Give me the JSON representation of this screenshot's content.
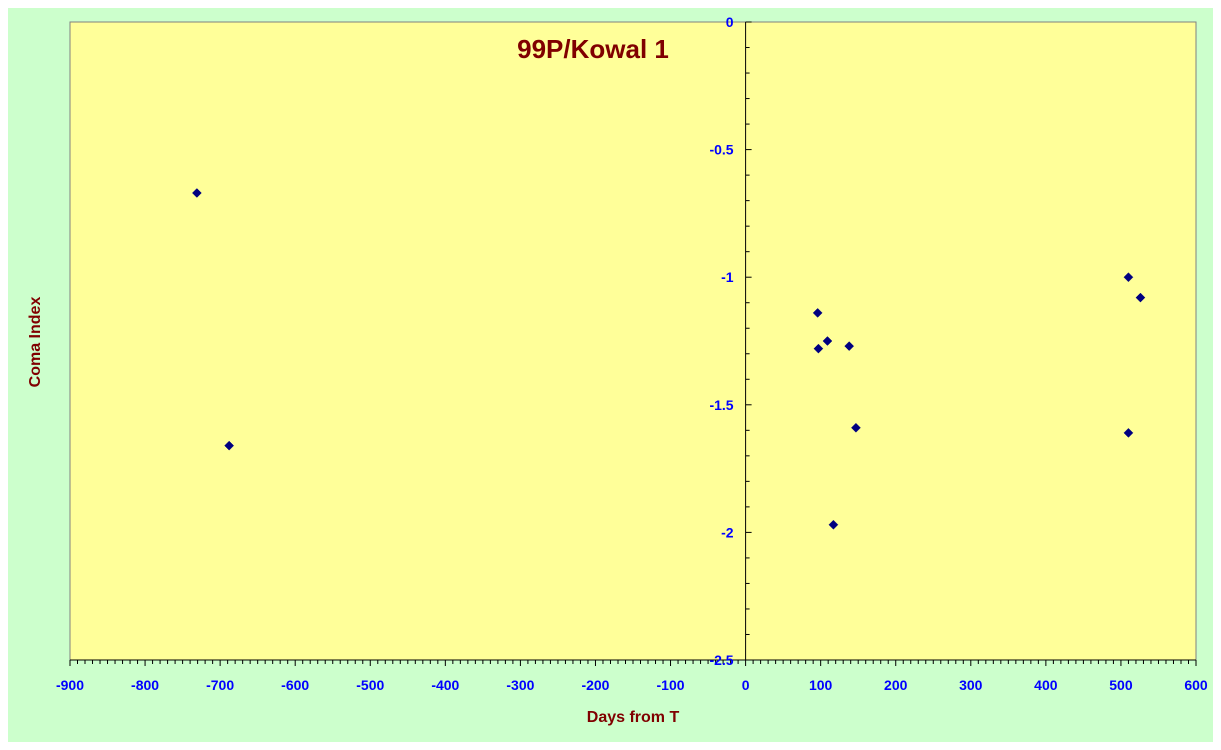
{
  "chart_data": {
    "type": "scatter",
    "title": "99P/Kowal 1",
    "xlabel": "Days from T",
    "ylabel": "Coma Index",
    "xlim": [
      -900,
      600
    ],
    "ylim": [
      -2.5,
      0
    ],
    "x_ticks": [
      -900,
      -800,
      -700,
      -600,
      -500,
      -400,
      -300,
      -200,
      -100,
      0,
      100,
      200,
      300,
      400,
      500,
      600
    ],
    "y_ticks": [
      0,
      -0.5,
      -1,
      -1.5,
      -2,
      -2.5
    ],
    "grid": false,
    "legend": "none",
    "points": [
      {
        "x": -731,
        "y": -0.67
      },
      {
        "x": -688,
        "y": -1.66
      },
      {
        "x": 96,
        "y": -1.14
      },
      {
        "x": 97,
        "y": -1.28
      },
      {
        "x": 109,
        "y": -1.25
      },
      {
        "x": 117,
        "y": -1.97
      },
      {
        "x": 138,
        "y": -1.27
      },
      {
        "x": 147,
        "y": -1.59
      },
      {
        "x": 510,
        "y": -1.0
      },
      {
        "x": 510,
        "y": -1.61
      },
      {
        "x": 526,
        "y": -1.08
      }
    ]
  },
  "colors": {
    "background": "#ccffcc",
    "plot_area": "#ffff99",
    "marker": "#000080",
    "tick_labels": "#0000ff",
    "titles": "#800000"
  }
}
